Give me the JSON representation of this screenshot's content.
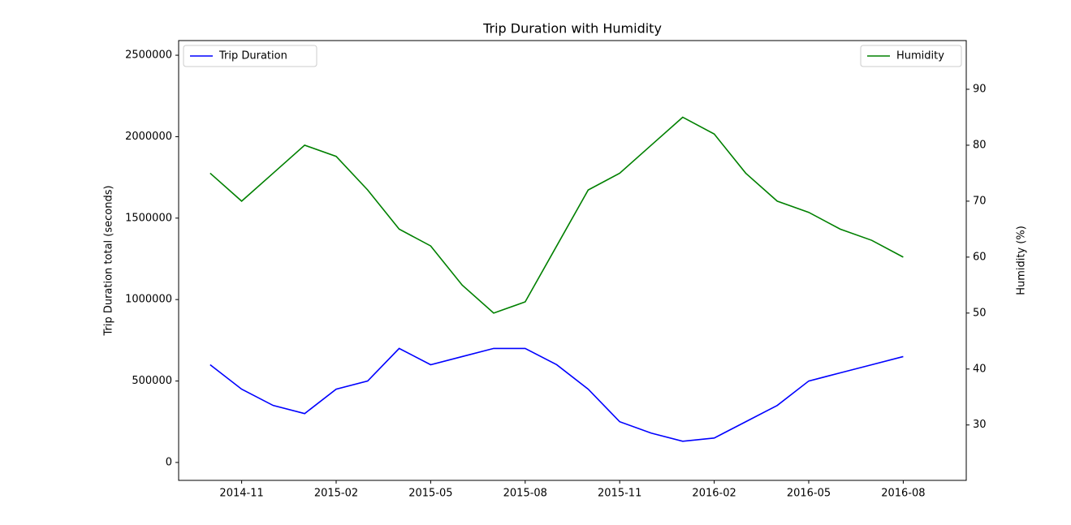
{
  "chart_data": {
    "type": "line",
    "title": "Trip Duration with Humidity",
    "ylabel": "Trip Duration total (seconds)",
    "y2label": "Humidity (%)",
    "x": [
      "2014-10",
      "2014-11",
      "2014-12",
      "2015-01",
      "2015-02",
      "2015-03",
      "2015-04",
      "2015-05",
      "2015-06",
      "2015-07",
      "2015-08",
      "2015-09",
      "2015-10",
      "2015-11",
      "2015-12",
      "2016-01",
      "2016-02",
      "2016-03",
      "2016-04",
      "2016-05",
      "2016-06",
      "2016-07",
      "2016-08"
    ],
    "xlim": [
      "2014-09",
      "2016-10"
    ],
    "xticks": [
      "2014-11",
      "2015-02",
      "2015-05",
      "2015-08",
      "2015-11",
      "2016-02",
      "2016-05",
      "2016-08"
    ],
    "ylim": [
      -110000,
      2590000
    ],
    "yticks": [
      0,
      500000,
      1000000,
      1500000,
      2000000,
      2500000
    ],
    "y2lim": [
      20.1,
      98.7
    ],
    "y2ticks": [
      30,
      40,
      50,
      60,
      70,
      80,
      90
    ],
    "grid": false,
    "series": [
      {
        "name": "Trip Duration",
        "color": "#0000ff",
        "axis": "y",
        "legend": "upper left",
        "values": [
          600000,
          450000,
          350000,
          300000,
          450000,
          500000,
          700000,
          600000,
          650000,
          700000,
          700000,
          600000,
          450000,
          250000,
          180000,
          130000,
          150000,
          250000,
          350000,
          500000,
          550000,
          600000,
          650000
        ]
      },
      {
        "name": "Humidity",
        "color": "#008000",
        "axis": "y2",
        "legend": "upper right",
        "values": [
          75,
          70,
          75,
          80,
          78,
          72,
          65,
          62,
          55,
          50,
          52,
          62,
          72,
          75,
          80,
          85,
          82,
          75,
          70,
          68,
          65,
          63,
          60
        ]
      }
    ]
  }
}
